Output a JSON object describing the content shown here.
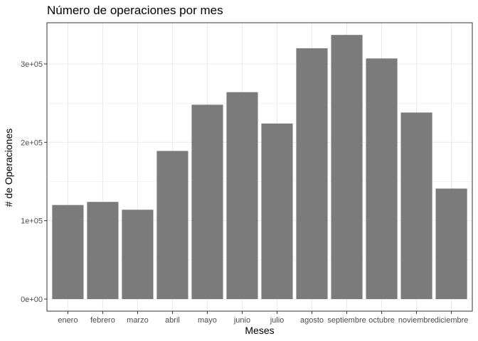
{
  "chart_data": {
    "type": "bar",
    "title": "Número de operaciones por mes",
    "xlabel": "Meses",
    "ylabel": "# de Operaciones",
    "categories": [
      "enero",
      "febrero",
      "marzo",
      "abril",
      "mayo",
      "junio",
      "julio",
      "agosto",
      "septiembre",
      "octubre",
      "noviembre",
      "diciembre"
    ],
    "values": [
      120000,
      124000,
      114000,
      189000,
      248000,
      264000,
      224000,
      320000,
      337000,
      307000,
      238000,
      141000
    ],
    "ylim": [
      0,
      350000
    ],
    "yticks": [
      0,
      100000,
      200000,
      300000
    ],
    "ytick_labels": [
      "0e+00",
      "1e+05",
      "2e+05",
      "3e+05"
    ],
    "grid": true,
    "bar_color": "#7b7b7b",
    "grid_color": "#ebebeb",
    "frame_color": "#333333"
  }
}
